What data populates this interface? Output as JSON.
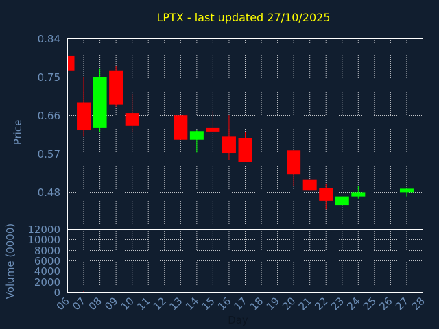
{
  "chart_data": {
    "type": "candlestick",
    "title": "LPTX - last updated 27/10/2025",
    "xlabel": "Day",
    "ylabel_price": "Price",
    "ylabel_volume": "Volume (0000)",
    "x_tick_labels": [
      "06",
      "07",
      "08",
      "09",
      "10",
      "11",
      "12",
      "13",
      "14",
      "15",
      "16",
      "17",
      "18",
      "19",
      "20",
      "21",
      "22",
      "23",
      "24",
      "25",
      "26",
      "27",
      "28"
    ],
    "price_ticks": [
      "0.84",
      "0.75",
      "0.66",
      "0.57",
      "0.48"
    ],
    "price_ylim": [
      0.394,
      0.84
    ],
    "volume_ticks": [
      "12000",
      "10000",
      "8000",
      "6000",
      "4000",
      "2000",
      "0"
    ],
    "volume_ylim": [
      0,
      12000
    ],
    "grid": true,
    "colors": {
      "background": "#111e2f",
      "title": "#ffff00",
      "text": "#6d8fb8",
      "up": "#00ff00",
      "down": "#ff0000",
      "axis": "#ffffff",
      "grid": "#ffffff"
    },
    "candles": [
      {
        "day": 6,
        "open": 0.8,
        "high": 0.8,
        "low": 0.765,
        "close": 0.765,
        "volume": 0
      },
      {
        "day": 7,
        "open": 0.69,
        "high": 0.75,
        "low": 0.61,
        "close": 0.625,
        "volume": 200
      },
      {
        "day": 8,
        "open": 0.63,
        "high": 0.77,
        "low": 0.62,
        "close": 0.75,
        "volume": 0
      },
      {
        "day": 9,
        "open": 0.765,
        "high": 0.775,
        "low": 0.68,
        "close": 0.685,
        "volume": 0
      },
      {
        "day": 10,
        "open": 0.665,
        "high": 0.71,
        "low": 0.62,
        "close": 0.635,
        "volume": 0
      },
      {
        "day": 13,
        "open": 0.66,
        "high": 0.66,
        "low": 0.603,
        "close": 0.603,
        "volume": 0
      },
      {
        "day": 14,
        "open": 0.603,
        "high": 0.625,
        "low": 0.573,
        "close": 0.623,
        "volume": 0
      },
      {
        "day": 15,
        "open": 0.63,
        "high": 0.67,
        "low": 0.622,
        "close": 0.622,
        "volume": 0
      },
      {
        "day": 16,
        "open": 0.61,
        "high": 0.66,
        "low": 0.555,
        "close": 0.572,
        "volume": 0
      },
      {
        "day": 17,
        "open": 0.606,
        "high": 0.62,
        "low": 0.55,
        "close": 0.55,
        "volume": 0
      },
      {
        "day": 20,
        "open": 0.578,
        "high": 0.578,
        "low": 0.495,
        "close": 0.522,
        "volume": 0
      },
      {
        "day": 21,
        "open": 0.51,
        "high": 0.51,
        "low": 0.485,
        "close": 0.485,
        "volume": 0
      },
      {
        "day": 22,
        "open": 0.49,
        "high": 0.5,
        "low": 0.44,
        "close": 0.46,
        "volume": 0
      },
      {
        "day": 23,
        "open": 0.45,
        "high": 0.47,
        "low": 0.45,
        "close": 0.47,
        "volume": 0
      },
      {
        "day": 24,
        "open": 0.47,
        "high": 0.495,
        "low": 0.465,
        "close": 0.48,
        "volume": 0
      },
      {
        "day": 27,
        "open": 0.48,
        "high": 0.488,
        "low": 0.47,
        "close": 0.488,
        "volume": 0
      }
    ]
  }
}
